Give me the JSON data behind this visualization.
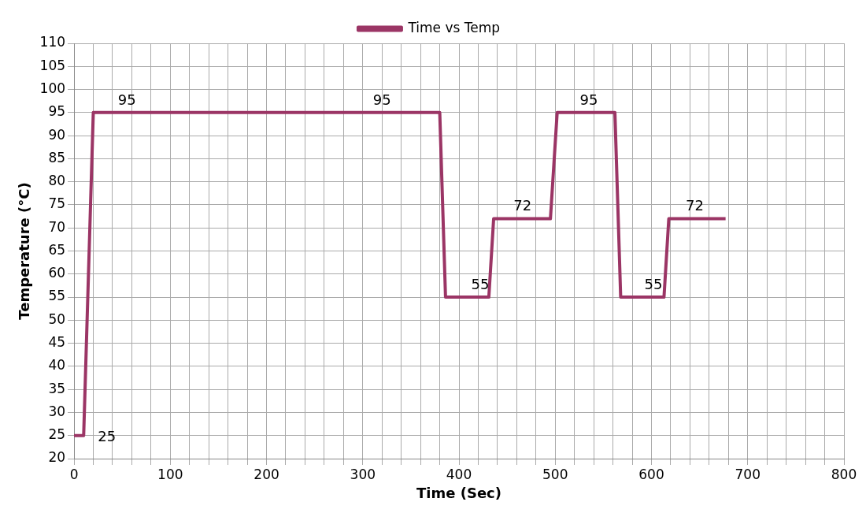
{
  "chart_data": {
    "type": "line",
    "xlabel": "Time (Sec)",
    "ylabel": "Temperature (°C)",
    "xlim": [
      0,
      800
    ],
    "xticks": [
      0,
      {
        "value": 20,
        "label": null
      },
      {
        "value": 40,
        "label": null
      },
      {
        "value": 60,
        "label": null
      },
      {
        "value": 80,
        "label": null
      },
      100,
      {
        "value": 120,
        "label": null
      },
      {
        "value": 140,
        "label": null
      },
      {
        "value": 160,
        "label": null
      },
      {
        "value": 180,
        "label": null
      },
      200,
      {
        "value": 220,
        "label": null
      },
      {
        "value": 240,
        "label": null
      },
      {
        "value": 260,
        "label": null
      },
      {
        "value": 280,
        "label": null
      },
      300,
      {
        "value": 320,
        "label": null
      },
      {
        "value": 340,
        "label": null
      },
      {
        "value": 360,
        "label": null
      },
      {
        "value": 380,
        "label": null
      },
      400,
      {
        "value": 420,
        "label": null
      },
      {
        "value": 440,
        "label": null
      },
      {
        "value": 460,
        "label": null
      },
      {
        "value": 480,
        "label": null
      },
      500,
      {
        "value": 520,
        "label": null
      },
      {
        "value": 540,
        "label": null
      },
      {
        "value": 560,
        "label": null
      },
      {
        "value": 580,
        "label": null
      },
      600,
      {
        "value": 620,
        "label": null
      },
      {
        "value": 640,
        "label": null
      },
      {
        "value": 660,
        "label": null
      },
      {
        "value": 680,
        "label": null
      },
      700,
      {
        "value": 720,
        "label": null
      },
      {
        "value": 740,
        "label": null
      },
      {
        "value": 760,
        "label": null
      },
      {
        "value": 780,
        "label": null
      },
      800
    ],
    "ylim": [
      20,
      110
    ],
    "yticks": [
      20,
      25,
      30,
      35,
      40,
      45,
      50,
      55,
      60,
      65,
      70,
      75,
      80,
      85,
      90,
      95,
      100,
      105,
      110
    ],
    "grid": true,
    "legend": "top",
    "marker": "none",
    "line_style": "solid",
    "series": [
      {
        "name": "Time vs Temp",
        "color": "#9b3565",
        "x": [
          0,
          10,
          20,
          380,
          386,
          431,
          436,
          495,
          502,
          562,
          568,
          613,
          618,
          677
        ],
        "values": [
          25,
          25,
          95,
          95,
          55,
          55,
          72,
          72,
          95,
          95,
          55,
          55,
          72,
          72
        ]
      }
    ],
    "annotations": [
      {
        "text": "95",
        "x": 55,
        "y": 95
      },
      {
        "text": "95",
        "x": 320,
        "y": 95
      },
      {
        "text": "95",
        "x": 535,
        "y": 95
      },
      {
        "text": "72",
        "x": 466,
        "y": 72
      },
      {
        "text": "72",
        "x": 645,
        "y": 72
      },
      {
        "text": "55",
        "x": 422,
        "y": 55
      },
      {
        "text": "55",
        "x": 602,
        "y": 55
      },
      {
        "text": "25",
        "x": 10,
        "y": 25
      }
    ]
  }
}
